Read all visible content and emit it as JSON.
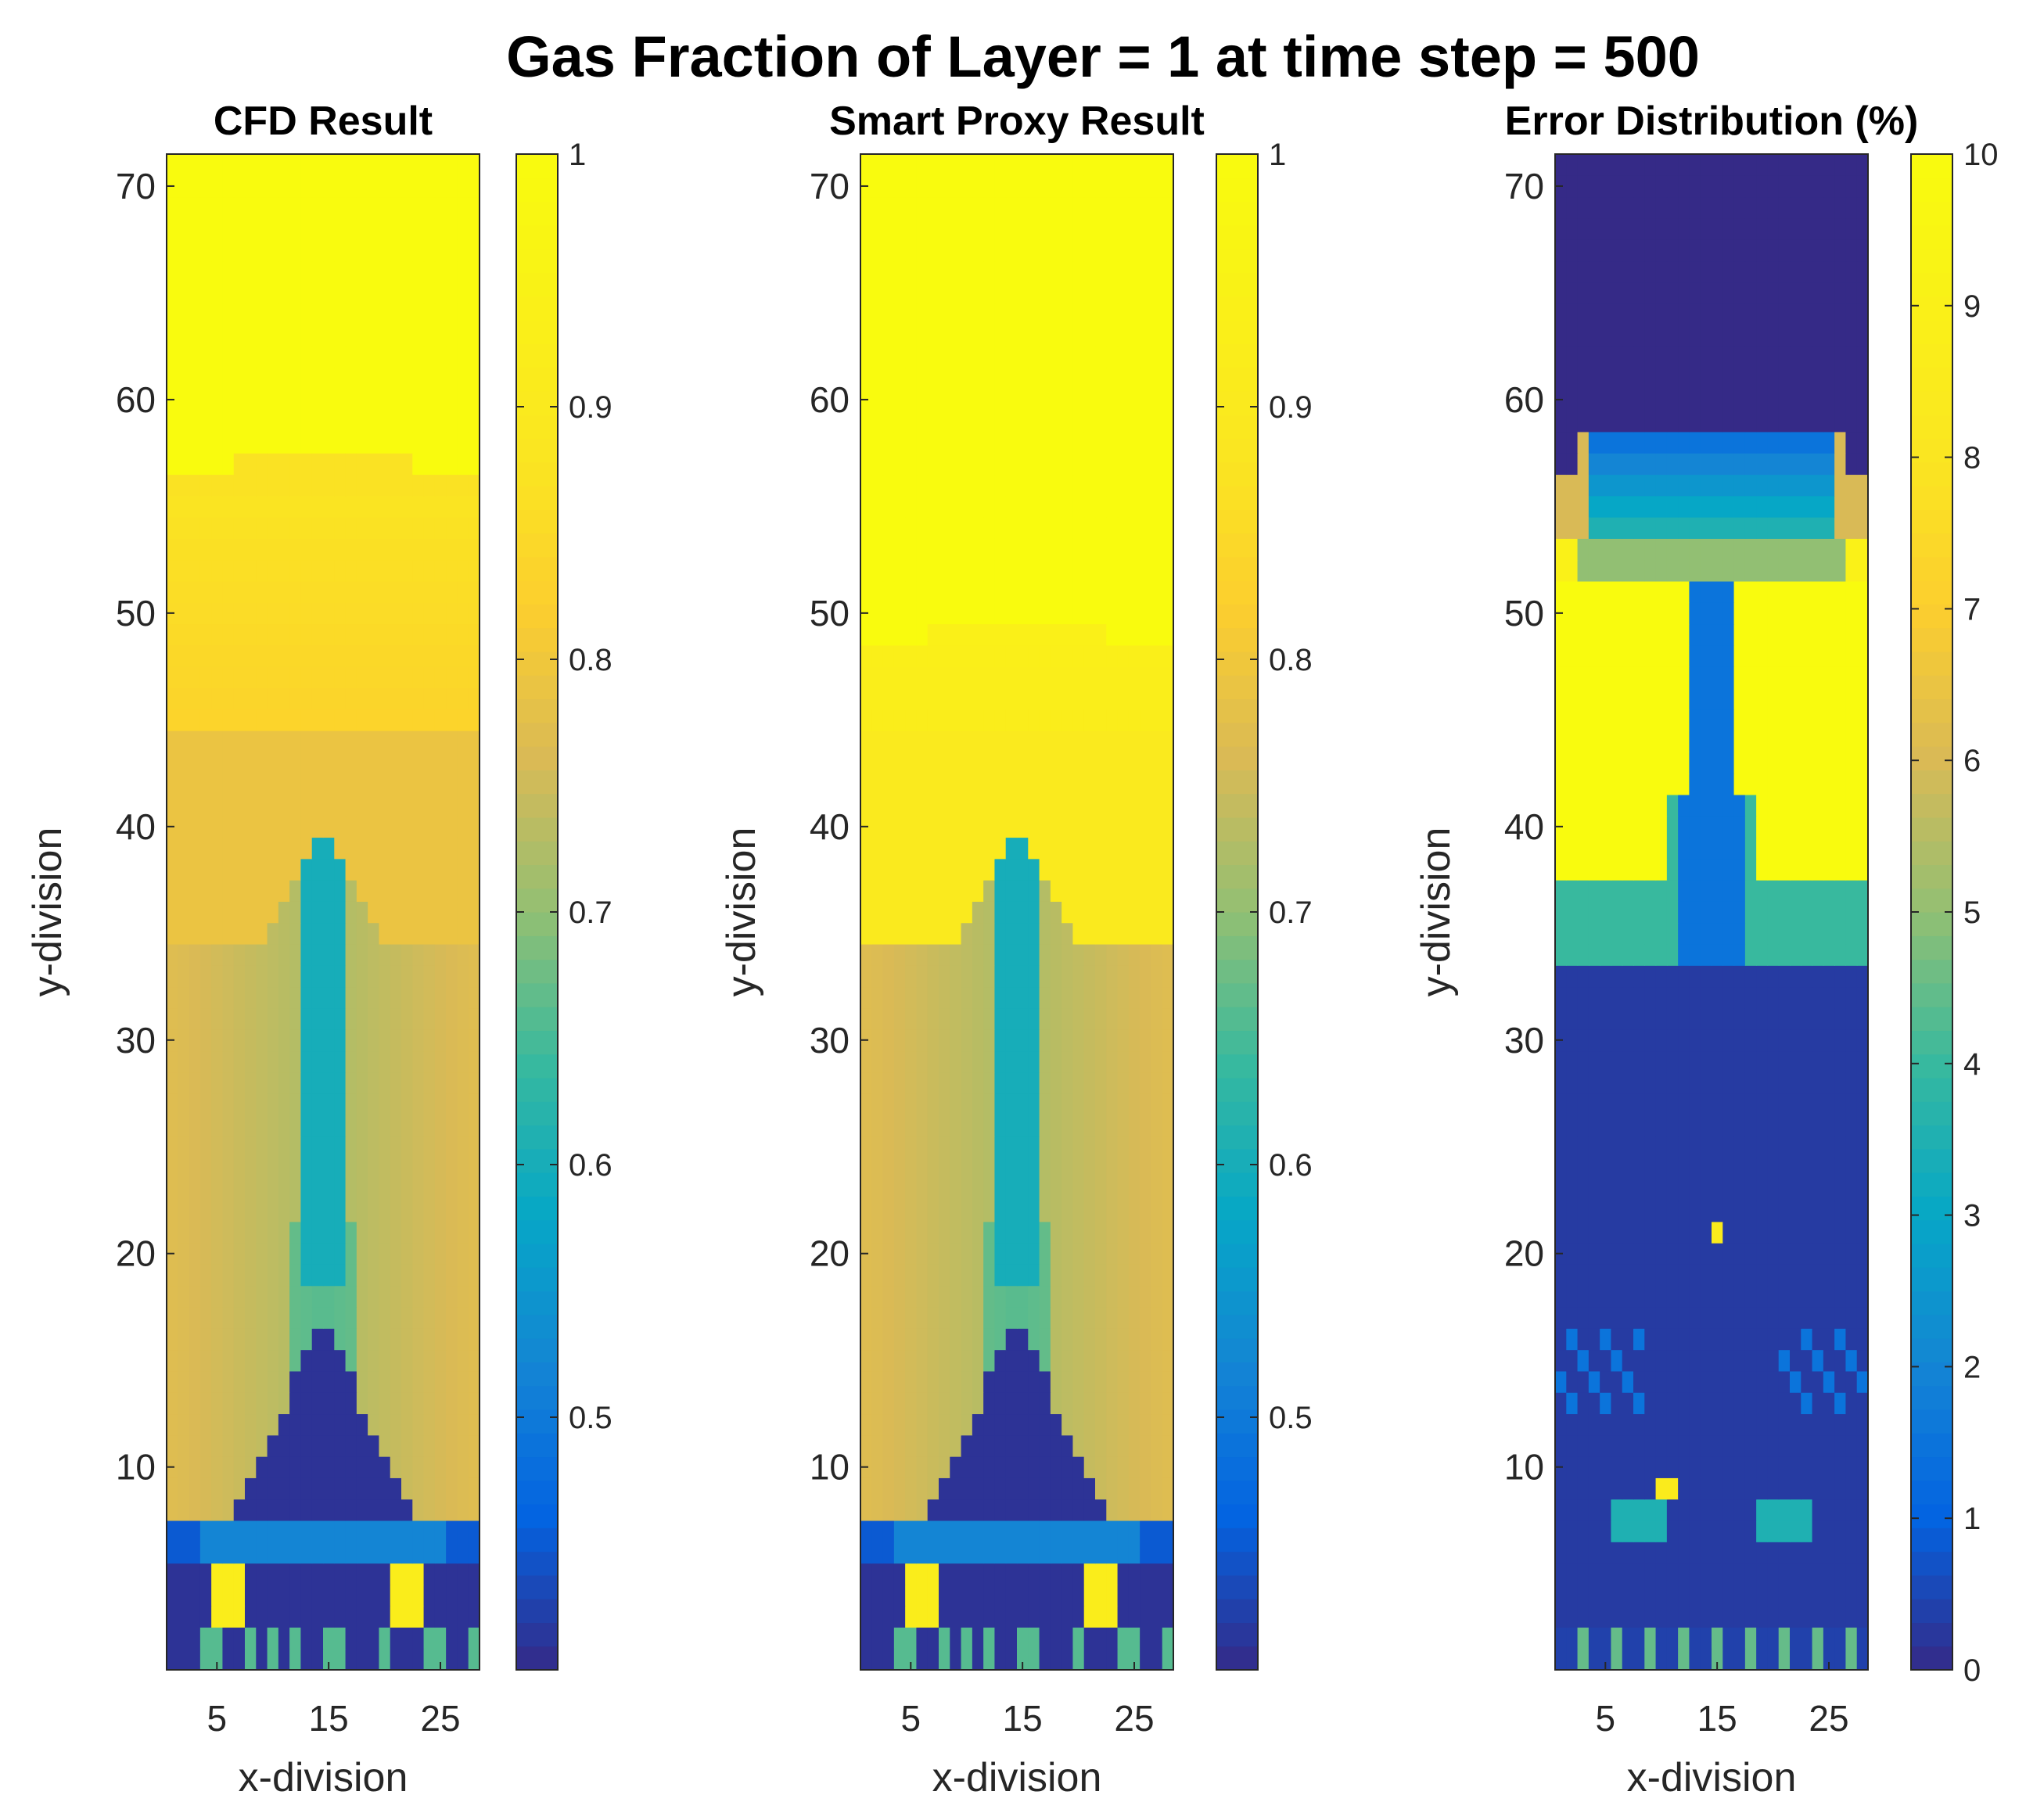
{
  "figure": {
    "suptitle": "Gas Fraction of Layer = 1 at time step = 500"
  },
  "chart_data": [
    {
      "type": "heatmap",
      "title": "CFD Result",
      "xlabel": "x-division",
      "ylabel": "y-division",
      "xlim": [
        0.5,
        28.5
      ],
      "ylim": [
        0.5,
        71.5
      ],
      "xticks": [
        5,
        15,
        25
      ],
      "yticks": [
        10,
        20,
        30,
        40,
        50,
        60,
        70
      ],
      "colormap": "parula",
      "clim": [
        0.4,
        1.0
      ],
      "colorbar_ticks": [
        0.5,
        0.6,
        0.7,
        0.8,
        0.9,
        1
      ],
      "colorbar_tick_labels": [
        "0.5",
        "0.6",
        "0.7",
        "0.8",
        "0.9",
        "1"
      ],
      "grid": [
        28,
        71
      ],
      "field_profile": {
        "top_plateau_value": 1.0,
        "top_plateau_from_y": 58,
        "upper_band_value": 0.87,
        "mid_value": 0.79,
        "lower_field_value": 0.72,
        "center_column_value": 0.6,
        "bottom_core_value": 0.41,
        "hot_spots": [
          [
            6,
            4
          ],
          [
            22,
            4
          ]
        ]
      }
    },
    {
      "type": "heatmap",
      "title": "Smart Proxy Result",
      "xlabel": "x-division",
      "ylabel": "y-division",
      "xlim": [
        0.5,
        28.5
      ],
      "ylim": [
        0.5,
        71.5
      ],
      "xticks": [
        5,
        15,
        25
      ],
      "yticks": [
        10,
        20,
        30,
        40,
        50,
        60,
        70
      ],
      "colormap": "parula",
      "clim": [
        0.4,
        1.0
      ],
      "colorbar_ticks": [
        0.5,
        0.6,
        0.7,
        0.8,
        0.9,
        1
      ],
      "colorbar_tick_labels": [
        "0.5",
        "0.6",
        "0.7",
        "0.8",
        "0.9",
        "1"
      ],
      "grid": [
        28,
        71
      ],
      "field_profile": {
        "top_plateau_value": 1.0,
        "top_plateau_from_y": 50,
        "upper_band_value": 0.93,
        "mid_value": 0.9,
        "lower_field_value": 0.72,
        "center_column_value": 0.6,
        "bottom_core_value": 0.41,
        "hot_spots": [
          [
            6,
            4
          ],
          [
            22,
            4
          ]
        ]
      }
    },
    {
      "type": "heatmap",
      "title": "Error Distribution (%)",
      "xlabel": "x-division",
      "ylabel": "y-division",
      "xlim": [
        0.5,
        28.5
      ],
      "ylim": [
        0.5,
        71.5
      ],
      "xticks": [
        5,
        15,
        25
      ],
      "yticks": [
        10,
        20,
        30,
        40,
        50,
        60,
        70
      ],
      "colormap": "parula",
      "clim": [
        0,
        10
      ],
      "colorbar_ticks": [
        0,
        1,
        2,
        3,
        4,
        5,
        6,
        7,
        8,
        9,
        10
      ],
      "colorbar_tick_labels": [
        "0",
        "1",
        "2",
        "3",
        "4",
        "5",
        "6",
        "7",
        "8",
        "9",
        "10"
      ],
      "grid": [
        28,
        71
      ],
      "field_profile": {
        "top_zero_from_y": 59,
        "transition_band_value": 4,
        "high_error_band_value": 10,
        "high_error_band_y": [
          42,
          51
        ],
        "lower_value": 0.3,
        "hot_spots": [
          [
            10,
            9
          ],
          [
            11,
            9
          ],
          [
            15,
            21
          ]
        ]
      }
    }
  ]
}
